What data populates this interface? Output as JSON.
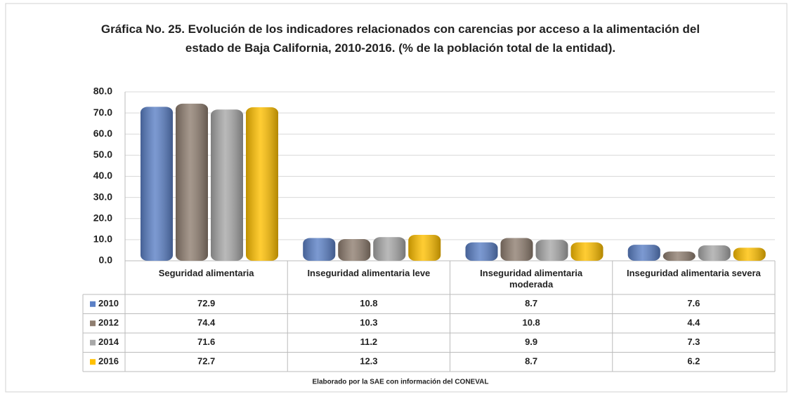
{
  "chart_data": {
    "type": "bar",
    "title": "Gráfica No. 25. Evolución de los indicadores relacionados con carencias por acceso a la alimentación del estado de Baja California, 2010-2016. (% de la población total de la entidad).",
    "categories": [
      "Seguridad alimentaria",
      "Inseguridad alimentaria leve",
      "Inseguridad alimentaria moderada",
      "Inseguridad alimentaria severa"
    ],
    "series": [
      {
        "name": "2010",
        "color": "#5b80c6",
        "values": [
          72.9,
          10.8,
          8.7,
          7.6
        ]
      },
      {
        "name": "2012",
        "color": "#8f7e70",
        "values": [
          74.4,
          10.3,
          10.8,
          4.4
        ]
      },
      {
        "name": "2014",
        "color": "#a8a8a8",
        "values": [
          71.6,
          11.2,
          9.9,
          7.3
        ]
      },
      {
        "name": "2016",
        "color": "#ffc000",
        "values": [
          72.7,
          12.3,
          8.7,
          6.2
        ]
      }
    ],
    "ylim": [
      0,
      80
    ],
    "yticks": [
      {
        "value": 0,
        "label": "0.0"
      },
      {
        "value": 10,
        "label": "10.0"
      },
      {
        "value": 20,
        "label": "20.0"
      },
      {
        "value": 30,
        "label": "30.0"
      },
      {
        "value": 40,
        "label": "40.0"
      },
      {
        "value": 50,
        "label": "50.0"
      },
      {
        "value": 60,
        "label": "60.0"
      },
      {
        "value": 70,
        "label": "70.0"
      },
      {
        "value": 80,
        "label": "80.0"
      }
    ],
    "grid": true,
    "source": "Elaborado por la SAE con información del CONEVAL"
  }
}
